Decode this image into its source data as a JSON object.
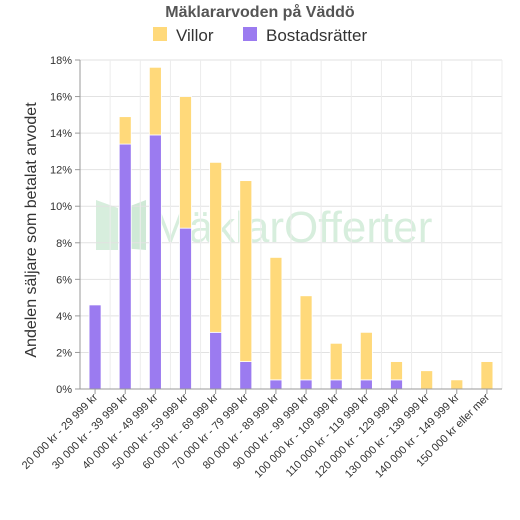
{
  "chart_data": {
    "type": "bar",
    "stacked": true,
    "title": "Mäklararvoden på Väddö",
    "ylabel": "Andelen säljare som betalat arvodet",
    "xlabel": "",
    "ylim": [
      0,
      18
    ],
    "yticks": [
      "0%",
      "2%",
      "4%",
      "6%",
      "8%",
      "10%",
      "12%",
      "14%",
      "16%",
      "18%"
    ],
    "grid": true,
    "legend_position": "top",
    "categories": [
      "20 000 kr - 29 999 kr",
      "30 000 kr - 39 999 kr",
      "40 000 kr - 49 999 kr",
      "50 000 kr - 59 999 kr",
      "60 000 kr - 69 999 kr",
      "70 000 kr - 79 999 kr",
      "80 000 kr - 89 999 kr",
      "90 000 kr - 99 999 kr",
      "100 000 kr - 109 999 kr",
      "110 000 kr - 119 999 kr",
      "120 000 kr - 129 999 kr",
      "130 000 kr - 139 999 kr",
      "140 000 kr - 149 999 kr",
      "150 000 kr eller mer"
    ],
    "series": [
      {
        "name": "Bostadsrätter",
        "color": "#9b7bf0",
        "values": [
          4.6,
          13.4,
          13.9,
          8.8,
          3.1,
          1.5,
          0.5,
          0.5,
          0.5,
          0.5,
          0.5,
          0,
          0,
          0
        ]
      },
      {
        "name": "Villor",
        "color": "#ffd97a",
        "values": [
          0,
          1.5,
          3.7,
          7.2,
          9.3,
          9.9,
          6.7,
          4.6,
          2.0,
          2.6,
          1.0,
          1.0,
          0.5,
          1.5
        ]
      }
    ],
    "legend_order": [
      "Villor",
      "Bostadsrätter"
    ],
    "watermark": "MäklarOfferter"
  }
}
